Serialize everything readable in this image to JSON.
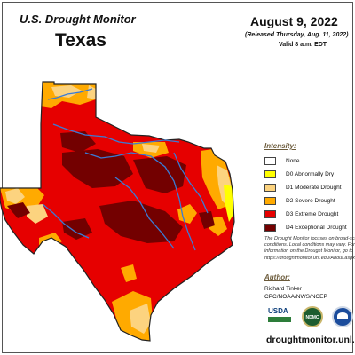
{
  "header": {
    "subtitle": "U.S. Drought Monitor",
    "state": "Texas",
    "date": "August 9, 2022",
    "released": "(Released Thursday, Aug. 11, 2022)",
    "valid": "Valid 8 a.m. EDT"
  },
  "legend": {
    "title": "Intensity:",
    "items": [
      {
        "label": "None",
        "color": "#ffffff"
      },
      {
        "label": "D0 Abnormally Dry",
        "color": "#ffff00"
      },
      {
        "label": "D1 Moderate Drought",
        "color": "#fcd37f"
      },
      {
        "label": "D2 Severe Drought",
        "color": "#ffaa00"
      },
      {
        "label": "D3 Extreme Drought",
        "color": "#e60000"
      },
      {
        "label": "D4 Exceptional Drought",
        "color": "#730000"
      }
    ]
  },
  "note": {
    "line1": "The Drought Monitor focuses on broad-scale",
    "line2": "conditions. Local conditions may vary. For more",
    "line3": "information on the Drought Monitor, go to",
    "line4": "https://droughtmonitor.unl.edu/About.aspx"
  },
  "author": {
    "title": "Author:",
    "name": "Richard Tinker",
    "org": "CPC/NOAA/NWS/NCEP"
  },
  "logos": {
    "usda": "USDA",
    "ndmc": "NDMC"
  },
  "website": "droughtmonitor.unl.edu"
}
